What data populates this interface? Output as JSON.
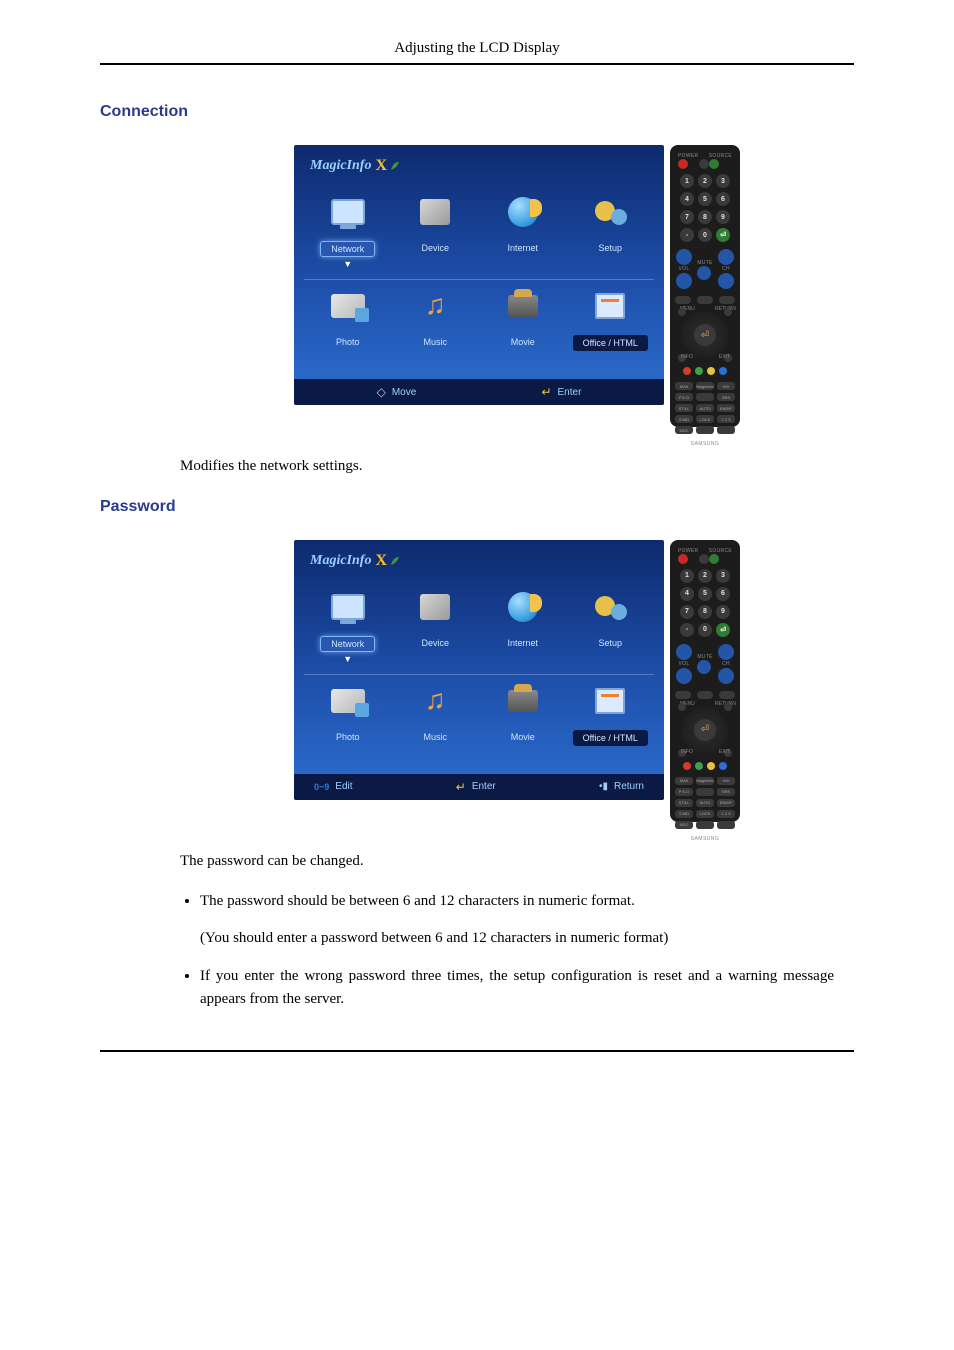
{
  "header": {
    "title": "Adjusting the LCD Display"
  },
  "section1": {
    "heading": "Connection",
    "caption": "Modifies the network settings."
  },
  "section2": {
    "heading": "Password",
    "caption": "The password can be changed.",
    "bullets": [
      {
        "text": "The password should be between 6 and 12 characters in numeric format.",
        "sub": "(You should enter a password between 6 and 12 characters in numeric format)"
      },
      {
        "text": "If you enter the wrong password three times, the setup configuration is reset and a warning message appears from the server."
      }
    ]
  },
  "screen": {
    "logo": "MagicInfo",
    "logo_suffix": "X",
    "tiles_top": [
      {
        "label": "Network",
        "selected": true
      },
      {
        "label": "Device"
      },
      {
        "label": "Internet"
      },
      {
        "label": "Setup"
      }
    ],
    "tiles_bottom": [
      {
        "label": "Photo"
      },
      {
        "label": "Music"
      },
      {
        "label": "Movie"
      },
      {
        "label": "Office / HTML",
        "dark": true
      }
    ],
    "footer_a": {
      "left_icon": "◇",
      "left_label": "Move",
      "right_icon": "↵",
      "right_label": "Enter"
    },
    "footer_b": {
      "items": [
        {
          "icon": "0~9",
          "label": "Edit",
          "icon_color": "#2d7bd4"
        },
        {
          "icon": "↵",
          "label": "Enter",
          "icon_color": "#f6c244"
        },
        {
          "icon": "▮",
          "label": "Return",
          "icon_color": "#a8c8ef"
        }
      ]
    }
  },
  "remote": {
    "power_label": "POWER",
    "source_label": "SOURCE",
    "numbers": [
      "1",
      "2",
      "3",
      "4",
      "5",
      "6",
      "7",
      "8",
      "9",
      "-",
      "0",
      "⏎"
    ],
    "vol": "VOL",
    "ch": "CH",
    "mute": "MUTE",
    "menu": "MENU",
    "return": "RETURN",
    "info": "INFO",
    "exit": "EXIT",
    "func": [
      "M/W",
      "MagicInfo",
      "+M+",
      "P K D",
      "",
      "SRS",
      "STILL",
      "AUTO",
      "ENDIP",
      "S.MD",
      "LOCK",
      "1 2 3",
      "MDC",
      "",
      ""
    ],
    "brand": "SAMSUNG",
    "colors": [
      "#d63a2e",
      "#3fa04a",
      "#e8c23a",
      "#2d6fd0"
    ]
  }
}
